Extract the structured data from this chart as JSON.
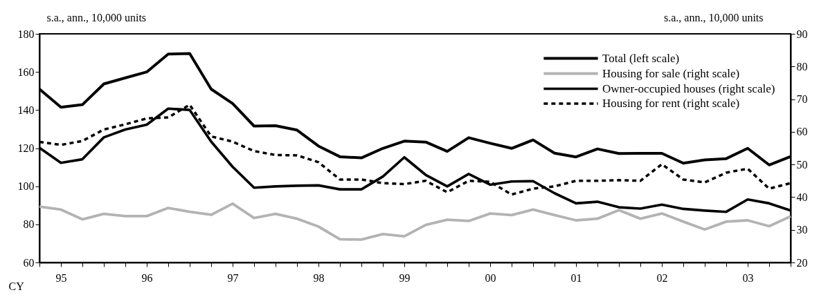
{
  "chart_data": {
    "type": "line",
    "xlabel": "CY",
    "ylabel": "s.a., ann., 10,000 units",
    "y2label": "s.a., ann., 10,000 units",
    "categories": [
      null,
      "95",
      null,
      null,
      null,
      "96",
      null,
      null,
      null,
      "97",
      null,
      null,
      null,
      "98",
      null,
      null,
      null,
      "99",
      null,
      null,
      null,
      "00",
      null,
      null,
      null,
      "01",
      null,
      null,
      null,
      "02",
      null,
      null,
      null,
      "03",
      null,
      null
    ],
    "ylim": [
      60,
      180
    ],
    "yticks": [
      60,
      80,
      100,
      120,
      140,
      160,
      180
    ],
    "y2lim": [
      20,
      90
    ],
    "y2ticks": [
      20,
      30,
      40,
      50,
      60,
      70,
      80,
      90
    ],
    "legend": "top right",
    "series": [
      {
        "name": "Total (left scale)",
        "color": "#000000",
        "line_style": "solid",
        "values": [
          151,
          141.5,
          142.8,
          153.7,
          156.9,
          160,
          169.4,
          169.7,
          151,
          143.4,
          131.6,
          131.8,
          129.5,
          121.1,
          115.5,
          114.9,
          119.9,
          123.7,
          123.2,
          118.3,
          125.5,
          122.6,
          119.9,
          124.3,
          117.4,
          115.4,
          119.6,
          117.2,
          117.3,
          117.3,
          112.1,
          113.8,
          114.5,
          119.9,
          111.2,
          115.6
        ]
      },
      {
        "name": "Housing for sale (right scale)",
        "color": "#b3b3b3",
        "axis": "y2",
        "line_style": "solid",
        "values": [
          37.1,
          36.2,
          33.2,
          34.9,
          34.2,
          34.2,
          36.7,
          35.5,
          34.6,
          38,
          33.6,
          34.9,
          33.4,
          31,
          27.1,
          27,
          28.7,
          28,
          31.5,
          33.1,
          32.7,
          35,
          34.5,
          36.2,
          34.5,
          32.9,
          33.4,
          36,
          33.4,
          35,
          32.5,
          30.1,
          32.5,
          32.9,
          31.1,
          34.1
        ]
      },
      {
        "name": "Owner-occupied houses (right scale)",
        "color": "#000000",
        "axis": "y2",
        "line_style": "solid",
        "values": [
          55.1,
          50.5,
          51.6,
          58.3,
          60.7,
          62.2,
          67.1,
          66.7,
          57,
          49.3,
          42.9,
          43.3,
          43.5,
          43.6,
          42.4,
          42.4,
          46.3,
          52.2,
          46.8,
          43.3,
          47.1,
          43.8,
          44.8,
          44.9,
          41.2,
          38.1,
          38.6,
          36.9,
          36.5,
          37.7,
          36.4,
          35.9,
          35.5,
          39.3,
          38.1,
          35.9
        ]
      },
      {
        "name": "Housing for rent (right scale)",
        "color": "#000000",
        "axis": "y2",
        "line_style": "dashed",
        "values": [
          56.9,
          56,
          57.2,
          60.7,
          62.3,
          64.1,
          64.4,
          68.3,
          58.6,
          57,
          54.1,
          52.9,
          52.8,
          50.7,
          45.4,
          45.4,
          44.3,
          44,
          45,
          41.5,
          45,
          44.7,
          40.8,
          42.6,
          43.3,
          45,
          45,
          45.2,
          45,
          50.1,
          45.4,
          44.5,
          47.5,
          48.7,
          42.6,
          44.3
        ]
      }
    ]
  }
}
